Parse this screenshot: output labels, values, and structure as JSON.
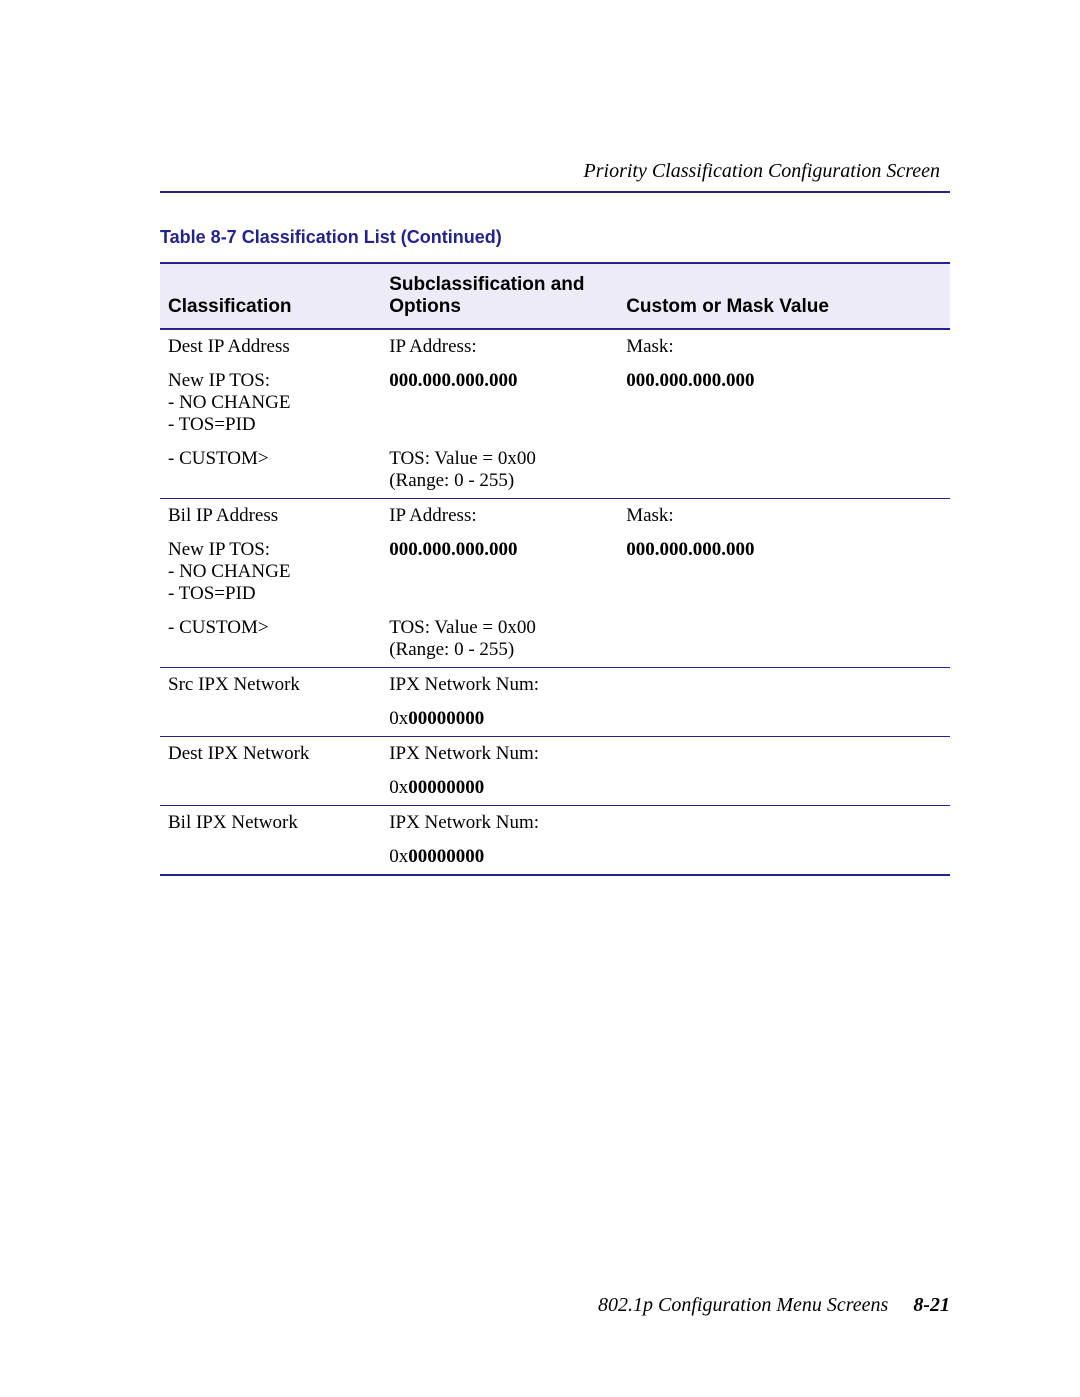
{
  "header": {
    "title": "Priority Classification Configuration Screen"
  },
  "table": {
    "caption": "Table 8-7   Classification List (Continued)",
    "columns": {
      "c1": "Classification",
      "c2": "Subclassification and Options",
      "c3": "Custom or Mask Value"
    },
    "r1": {
      "c1a": "Dest IP Address",
      "c2a": "IP Address:",
      "c3a": "Mask:",
      "c1b": "New IP TOS:",
      "c1c": "- NO CHANGE",
      "c1d": "- TOS=PID",
      "c1e": "- CUSTOM>",
      "c2b": "000.000.000.000",
      "c3b": "000.000.000.000",
      "c2c": "TOS: Value = 0x00",
      "c2d": "(Range: 0 - 255)"
    },
    "r2": {
      "c1a": "Bil IP Address",
      "c2a": "IP Address:",
      "c3a": "Mask:",
      "c1b": "New IP TOS:",
      "c1c": "- NO CHANGE",
      "c1d": "- TOS=PID",
      "c1e": "- CUSTOM>",
      "c2b": "000.000.000.000",
      "c3b": "000.000.000.000",
      "c2c": "TOS: Value = 0x00",
      "c2d": "(Range: 0 - 255)"
    },
    "r3": {
      "c1a": "Src IPX Network",
      "c2a": "IPX Network Num:",
      "c2b_prefix": "0x",
      "c2b_val": "00000000"
    },
    "r4": {
      "c1a": "Dest IPX Network",
      "c2a": "IPX Network Num:",
      "c2b_prefix": "0x",
      "c2b_val": "00000000"
    },
    "r5": {
      "c1a": "Bil IPX Network",
      "c2a": "IPX Network Num:",
      "c2b_prefix": "0x",
      "c2b_val": "00000000"
    }
  },
  "footer": {
    "text": "802.1p Configuration Menu Screens",
    "page": "8-21"
  },
  "colors": {
    "accent": "#23238e",
    "header_bg": "#ecebf7"
  }
}
